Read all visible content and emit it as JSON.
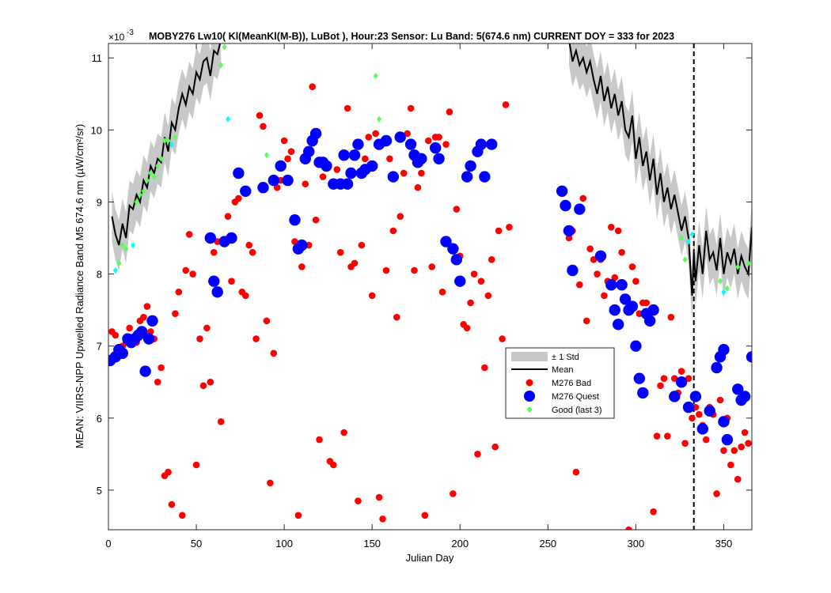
{
  "chart_data": {
    "type": "scatter",
    "title": "MOBY276   Lw10( Kl(MeanKl(M-B)), LuBot ),    Hour:23 Sensor: Lu Band: 5(674.6 nm)    CURRENT DOY = 333 for 2023",
    "xlabel": "Julian Day",
    "ylabel": "MEAN: VIIRS-NPP Upwelled Radiance Band M5 674.6 nm (µW/cm²/sr)",
    "y_exponent_label": "×10",
    "y_exponent": "-3",
    "xlim": [
      0,
      366
    ],
    "ylim": [
      4.45,
      11.2
    ],
    "xticks": [
      "0",
      "50",
      "100",
      "150",
      "200",
      "250",
      "300",
      "350"
    ],
    "yticks": [
      "5",
      "6",
      "7",
      "8",
      "9",
      "10",
      "11"
    ],
    "current_doy": 333,
    "legend": {
      "position": "center-right",
      "entries": [
        "± 1 Std",
        "Mean",
        "M276 Bad",
        "M276 Quest",
        "Good (last 3)"
      ]
    },
    "colors": {
      "std_band": "#c8c8c8",
      "mean": "#000000",
      "bad": "#ff0000",
      "quest": "#0000ff",
      "good_green": "#55ff55",
      "good_cyan": "#00ffff"
    },
    "mean_segments": [
      [
        [
          2,
          8.8
        ],
        [
          4,
          8.55
        ],
        [
          6,
          8.4
        ],
        [
          8,
          8.7
        ],
        [
          10,
          8.5
        ],
        [
          12,
          8.95
        ],
        [
          14,
          8.9
        ],
        [
          16,
          9.1
        ],
        [
          18,
          9.0
        ],
        [
          20,
          9.3
        ],
        [
          22,
          9.2
        ],
        [
          24,
          9.5
        ],
        [
          26,
          9.4
        ],
        [
          28,
          9.6
        ],
        [
          30,
          9.55
        ],
        [
          32,
          9.9
        ],
        [
          34,
          9.7
        ],
        [
          36,
          10.1
        ],
        [
          38,
          10.0
        ],
        [
          40,
          10.3
        ],
        [
          42,
          10.5
        ],
        [
          44,
          10.35
        ],
        [
          46,
          10.6
        ],
        [
          48,
          10.5
        ],
        [
          50,
          10.8
        ],
        [
          52,
          10.7
        ],
        [
          54,
          10.95
        ],
        [
          56,
          11.0
        ],
        [
          58,
          10.75
        ],
        [
          60,
          11.1
        ],
        [
          62,
          11.05
        ],
        [
          64,
          11.25
        ]
      ],
      [
        [
          262,
          11.25
        ],
        [
          264,
          10.95
        ],
        [
          266,
          11.1
        ],
        [
          268,
          10.9
        ],
        [
          270,
          11.0
        ],
        [
          272,
          10.8
        ],
        [
          274,
          10.95
        ],
        [
          276,
          10.7
        ],
        [
          278,
          10.5
        ],
        [
          280,
          10.75
        ],
        [
          282,
          10.4
        ],
        [
          284,
          10.6
        ],
        [
          286,
          10.3
        ],
        [
          288,
          10.5
        ],
        [
          290,
          10.2
        ],
        [
          292,
          10.4
        ],
        [
          294,
          10.0
        ],
        [
          296,
          9.9
        ],
        [
          298,
          10.2
        ],
        [
          300,
          9.6
        ],
        [
          302,
          9.9
        ],
        [
          304,
          9.5
        ],
        [
          306,
          9.7
        ],
        [
          308,
          9.3
        ],
        [
          310,
          9.6
        ],
        [
          312,
          9.1
        ],
        [
          314,
          9.4
        ],
        [
          316,
          9.0
        ],
        [
          318,
          9.2
        ],
        [
          320,
          8.9
        ],
        [
          322,
          9.1
        ],
        [
          324,
          8.85
        ],
        [
          326,
          8.6
        ],
        [
          328,
          8.8
        ],
        [
          330,
          8.5
        ],
        [
          332,
          7.7
        ],
        [
          333,
          8.3
        ],
        [
          334,
          7.9
        ],
        [
          336,
          8.4
        ],
        [
          338,
          8.0
        ],
        [
          340,
          8.6
        ],
        [
          342,
          8.2
        ],
        [
          344,
          8.3
        ],
        [
          346,
          8.05
        ],
        [
          348,
          8.5
        ],
        [
          350,
          8.0
        ],
        [
          352,
          8.3
        ],
        [
          354,
          8.15
        ],
        [
          356,
          8.35
        ],
        [
          358,
          8.0
        ],
        [
          360,
          8.25
        ],
        [
          362,
          8.1
        ],
        [
          364,
          8.0
        ],
        [
          366,
          8.65
        ]
      ]
    ],
    "std_width": 0.35,
    "bad_points": [
      [
        2,
        7.2
      ],
      [
        4,
        7.15
      ],
      [
        6,
        6.9
      ],
      [
        8,
        7.0
      ],
      [
        10,
        7.05
      ],
      [
        12,
        7.25
      ],
      [
        14,
        7.1
      ],
      [
        16,
        7.05
      ],
      [
        18,
        7.35
      ],
      [
        20,
        7.4
      ],
      [
        22,
        7.55
      ],
      [
        24,
        7.2
      ],
      [
        26,
        7.1
      ],
      [
        28,
        6.5
      ],
      [
        30,
        6.7
      ],
      [
        32,
        5.2
      ],
      [
        34,
        5.25
      ],
      [
        36,
        4.8
      ],
      [
        38,
        7.45
      ],
      [
        40,
        7.75
      ],
      [
        42,
        4.65
      ],
      [
        44,
        8.05
      ],
      [
        46,
        8.55
      ],
      [
        48,
        8.0
      ],
      [
        50,
        5.35
      ],
      [
        52,
        7.1
      ],
      [
        54,
        6.45
      ],
      [
        56,
        7.25
      ],
      [
        58,
        6.5
      ],
      [
        60,
        8.3
      ],
      [
        62,
        8.45
      ],
      [
        64,
        5.95
      ],
      [
        66,
        8.45
      ],
      [
        68,
        8.8
      ],
      [
        70,
        7.9
      ],
      [
        72,
        9.0
      ],
      [
        74,
        9.05
      ],
      [
        76,
        7.75
      ],
      [
        78,
        7.7
      ],
      [
        80,
        8.4
      ],
      [
        82,
        8.3
      ],
      [
        84,
        7.1
      ],
      [
        86,
        10.2
      ],
      [
        88,
        10.05
      ],
      [
        90,
        7.35
      ],
      [
        92,
        5.1
      ],
      [
        94,
        6.9
      ],
      [
        96,
        9.2
      ],
      [
        98,
        9.3
      ],
      [
        100,
        9.85
      ],
      [
        102,
        9.6
      ],
      [
        104,
        9.7
      ],
      [
        106,
        8.45
      ],
      [
        108,
        4.65
      ],
      [
        110,
        8.1
      ],
      [
        112,
        9.25
      ],
      [
        114,
        8.4
      ],
      [
        116,
        10.6
      ],
      [
        118,
        8.75
      ],
      [
        120,
        5.7
      ],
      [
        122,
        9.35
      ],
      [
        124,
        9.5
      ],
      [
        126,
        5.4
      ],
      [
        128,
        5.35
      ],
      [
        130,
        9.45
      ],
      [
        132,
        8.3
      ],
      [
        134,
        5.8
      ],
      [
        136,
        10.3
      ],
      [
        138,
        8.1
      ],
      [
        140,
        8.15
      ],
      [
        142,
        4.85
      ],
      [
        144,
        8.4
      ],
      [
        146,
        9.6
      ],
      [
        148,
        9.9
      ],
      [
        150,
        7.7
      ],
      [
        152,
        9.95
      ],
      [
        154,
        4.9
      ],
      [
        156,
        4.6
      ],
      [
        158,
        8.05
      ],
      [
        160,
        9.6
      ],
      [
        162,
        8.6
      ],
      [
        164,
        7.4
      ],
      [
        166,
        8.8
      ],
      [
        168,
        9.4
      ],
      [
        170,
        9.95
      ],
      [
        172,
        10.3
      ],
      [
        174,
        8.05
      ],
      [
        176,
        9.2
      ],
      [
        178,
        9.4
      ],
      [
        180,
        4.65
      ],
      [
        182,
        9.85
      ],
      [
        184,
        8.1
      ],
      [
        186,
        9.9
      ],
      [
        188,
        9.9
      ],
      [
        190,
        7.75
      ],
      [
        192,
        9.8
      ],
      [
        194,
        10.25
      ],
      [
        196,
        4.95
      ],
      [
        198,
        8.9
      ],
      [
        200,
        8.25
      ],
      [
        202,
        7.3
      ],
      [
        204,
        7.25
      ],
      [
        206,
        7.6
      ],
      [
        208,
        8.0
      ],
      [
        210,
        5.5
      ],
      [
        212,
        7.9
      ],
      [
        214,
        6.7
      ],
      [
        216,
        7.7
      ],
      [
        218,
        8.2
      ],
      [
        220,
        5.6
      ],
      [
        222,
        8.6
      ],
      [
        224,
        7.1
      ],
      [
        226,
        10.35
      ],
      [
        228,
        8.65
      ],
      [
        262,
        8.5
      ],
      [
        264,
        8.6
      ],
      [
        266,
        5.25
      ],
      [
        268,
        7.85
      ],
      [
        270,
        9.05
      ],
      [
        272,
        7.35
      ],
      [
        274,
        8.35
      ],
      [
        276,
        8.2
      ],
      [
        278,
        8.0
      ],
      [
        280,
        8.2
      ],
      [
        282,
        7.7
      ],
      [
        284,
        7.9
      ],
      [
        286,
        8.65
      ],
      [
        288,
        7.95
      ],
      [
        290,
        8.6
      ],
      [
        292,
        8.3
      ],
      [
        294,
        7.65
      ],
      [
        296,
        4.45
      ],
      [
        298,
        8.1
      ],
      [
        300,
        7.9
      ],
      [
        302,
        7.45
      ],
      [
        304,
        7.6
      ],
      [
        306,
        7.6
      ],
      [
        308,
        7.35
      ],
      [
        310,
        4.7
      ],
      [
        312,
        5.75
      ],
      [
        314,
        6.45
      ],
      [
        316,
        6.55
      ],
      [
        318,
        5.75
      ],
      [
        320,
        7.4
      ],
      [
        322,
        6.55
      ],
      [
        324,
        6.35
      ],
      [
        326,
        6.65
      ],
      [
        328,
        5.65
      ],
      [
        330,
        6.55
      ],
      [
        332,
        6.0
      ],
      [
        334,
        6.15
      ],
      [
        336,
        6.05
      ],
      [
        338,
        5.9
      ],
      [
        340,
        5.7
      ],
      [
        342,
        6.15
      ],
      [
        344,
        6.05
      ],
      [
        346,
        4.95
      ],
      [
        348,
        6.25
      ],
      [
        350,
        5.55
      ],
      [
        352,
        6.0
      ],
      [
        354,
        5.35
      ],
      [
        356,
        5.55
      ],
      [
        358,
        5.15
      ],
      [
        360,
        5.6
      ],
      [
        362,
        5.8
      ],
      [
        364,
        5.65
      ]
    ],
    "quest_points": [
      [
        1,
        6.8
      ],
      [
        4,
        6.85
      ],
      [
        6,
        6.95
      ],
      [
        8,
        6.9
      ],
      [
        11,
        7.1
      ],
      [
        13,
        7.05
      ],
      [
        15,
        7.1
      ],
      [
        17,
        7.15
      ],
      [
        19,
        7.2
      ],
      [
        21,
        6.65
      ],
      [
        23,
        7.1
      ],
      [
        25,
        7.35
      ],
      [
        58,
        8.5
      ],
      [
        60,
        7.9
      ],
      [
        62,
        7.75
      ],
      [
        66,
        8.45
      ],
      [
        70,
        8.5
      ],
      [
        74,
        9.4
      ],
      [
        78,
        9.15
      ],
      [
        88,
        9.2
      ],
      [
        94,
        9.3
      ],
      [
        98,
        9.5
      ],
      [
        102,
        9.3
      ],
      [
        106,
        8.75
      ],
      [
        108,
        8.35
      ],
      [
        110,
        8.4
      ],
      [
        112,
        9.6
      ],
      [
        114,
        9.7
      ],
      [
        116,
        9.85
      ],
      [
        118,
        9.95
      ],
      [
        120,
        9.55
      ],
      [
        122,
        9.55
      ],
      [
        124,
        9.5
      ],
      [
        128,
        9.25
      ],
      [
        132,
        9.25
      ],
      [
        134,
        9.65
      ],
      [
        136,
        9.25
      ],
      [
        138,
        9.4
      ],
      [
        140,
        9.65
      ],
      [
        142,
        9.8
      ],
      [
        144,
        9.4
      ],
      [
        146,
        9.45
      ],
      [
        150,
        9.5
      ],
      [
        154,
        9.8
      ],
      [
        158,
        9.85
      ],
      [
        162,
        9.35
      ],
      [
        166,
        9.9
      ],
      [
        172,
        9.8
      ],
      [
        174,
        9.65
      ],
      [
        176,
        9.55
      ],
      [
        178,
        9.6
      ],
      [
        186,
        9.75
      ],
      [
        188,
        9.6
      ],
      [
        192,
        8.45
      ],
      [
        196,
        8.35
      ],
      [
        198,
        8.2
      ],
      [
        200,
        7.9
      ],
      [
        204,
        9.35
      ],
      [
        206,
        9.5
      ],
      [
        210,
        9.7
      ],
      [
        212,
        9.8
      ],
      [
        214,
        9.35
      ],
      [
        218,
        9.8
      ],
      [
        258,
        9.15
      ],
      [
        260,
        8.95
      ],
      [
        262,
        8.6
      ],
      [
        264,
        8.05
      ],
      [
        268,
        8.9
      ],
      [
        280,
        8.25
      ],
      [
        286,
        7.85
      ],
      [
        288,
        7.5
      ],
      [
        290,
        7.3
      ],
      [
        292,
        7.85
      ],
      [
        294,
        7.65
      ],
      [
        296,
        7.5
      ],
      [
        298,
        7.55
      ],
      [
        300,
        7.0
      ],
      [
        302,
        6.55
      ],
      [
        304,
        6.35
      ],
      [
        306,
        7.45
      ],
      [
        308,
        7.35
      ],
      [
        310,
        7.5
      ],
      [
        322,
        6.3
      ],
      [
        326,
        6.5
      ],
      [
        330,
        6.15
      ],
      [
        334,
        6.3
      ],
      [
        338,
        5.85
      ],
      [
        342,
        6.1
      ],
      [
        346,
        6.7
      ],
      [
        348,
        6.85
      ],
      [
        350,
        6.95
      ],
      [
        350,
        5.95
      ],
      [
        352,
        5.7
      ],
      [
        358,
        6.4
      ],
      [
        360,
        6.25
      ],
      [
        362,
        6.3
      ],
      [
        366,
        6.85
      ]
    ],
    "good_points": [
      [
        4,
        8.05,
        "cyan"
      ],
      [
        6,
        8.15,
        "green"
      ],
      [
        8,
        8.4,
        "green"
      ],
      [
        10,
        8.35,
        "green"
      ],
      [
        14,
        8.4,
        "cyan"
      ],
      [
        16,
        9.0,
        "green"
      ],
      [
        18,
        9.1,
        "green"
      ],
      [
        20,
        9.15,
        "green"
      ],
      [
        22,
        9.3,
        "green"
      ],
      [
        24,
        9.4,
        "green"
      ],
      [
        26,
        9.35,
        "green"
      ],
      [
        28,
        9.5,
        "green"
      ],
      [
        30,
        9.6,
        "green"
      ],
      [
        32,
        9.85,
        "green"
      ],
      [
        34,
        9.85,
        "green"
      ],
      [
        36,
        9.8,
        "cyan"
      ],
      [
        38,
        9.9,
        "green"
      ],
      [
        64,
        10.9,
        "green"
      ],
      [
        66,
        11.15,
        "green"
      ],
      [
        68,
        10.15,
        "cyan"
      ],
      [
        90,
        9.65,
        "green"
      ],
      [
        152,
        10.75,
        "green"
      ],
      [
        154,
        10.15,
        "green"
      ],
      [
        326,
        8.5,
        "green"
      ],
      [
        328,
        8.2,
        "green"
      ],
      [
        330,
        8.45,
        "cyan"
      ],
      [
        332,
        8.55,
        "cyan"
      ],
      [
        348,
        7.9,
        "green"
      ],
      [
        350,
        7.75,
        "cyan"
      ],
      [
        352,
        7.8,
        "green"
      ],
      [
        358,
        8.1,
        "green"
      ],
      [
        364,
        8.15,
        "green"
      ]
    ]
  }
}
